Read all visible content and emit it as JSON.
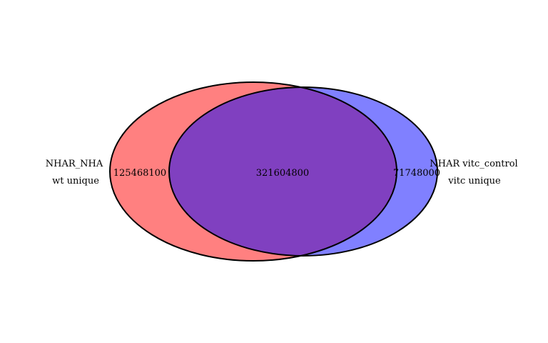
{
  "venn": {
    "sets": [
      {
        "name": "NHAR_NHA",
        "sublabel": "wt unique",
        "unique_count": "125468100",
        "fill": "#ff8080"
      },
      {
        "name": "NHAR vitc_control",
        "sublabel": "vitc unique",
        "unique_count": "71748000",
        "fill": "#8080ff"
      }
    ],
    "overlap": {
      "count": "321604800",
      "fill": "#8040c0"
    },
    "stroke": "#000000"
  }
}
